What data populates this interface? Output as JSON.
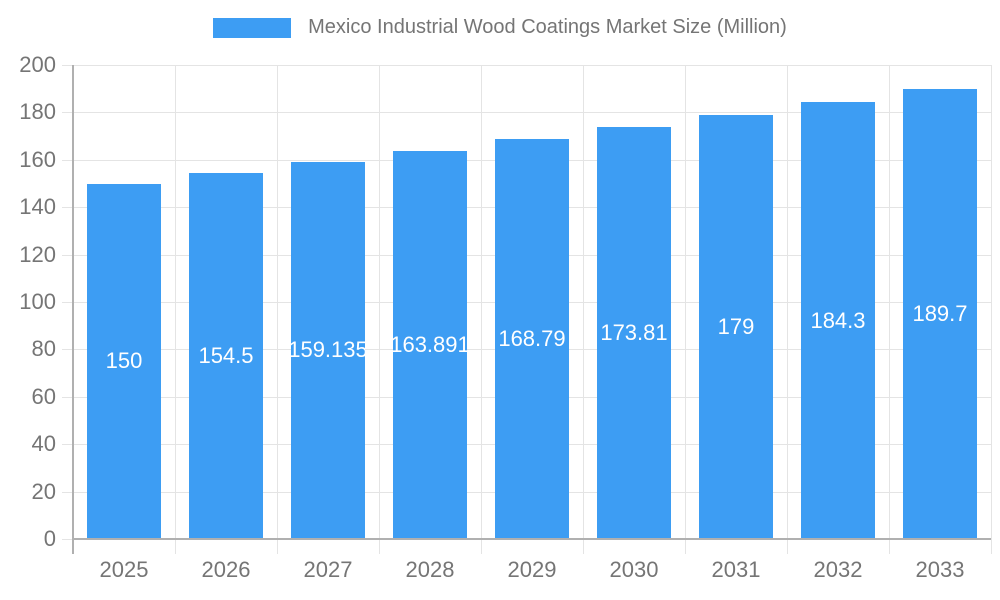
{
  "legend": {
    "title": "Mexico Industrial Wood Coatings Market Size (Million)"
  },
  "chart_data": {
    "type": "bar",
    "title": "Mexico Industrial Wood Coatings Market Size (Million)",
    "categories": [
      "2025",
      "2026",
      "2027",
      "2028",
      "2029",
      "2030",
      "2031",
      "2032",
      "2033"
    ],
    "values": [
      150,
      154.5,
      159.135,
      163.891,
      168.79,
      173.81,
      179,
      184.3,
      189.7
    ],
    "value_labels": [
      "150",
      "154.5",
      "159.135",
      "163.891",
      "168.79",
      "173.81",
      "179",
      "184.3",
      "189.7"
    ],
    "xlabel": "",
    "ylabel": "",
    "ylim": [
      0,
      200
    ],
    "ytick_step": 20,
    "grid": true,
    "legend_position": "top",
    "bar_color": "#3d9df3",
    "bar_label_color": "#ffffff",
    "axis_text_color": "#757575",
    "gridline_color": "#e4e4e4",
    "axis_line_color": "#b0b0b0"
  }
}
